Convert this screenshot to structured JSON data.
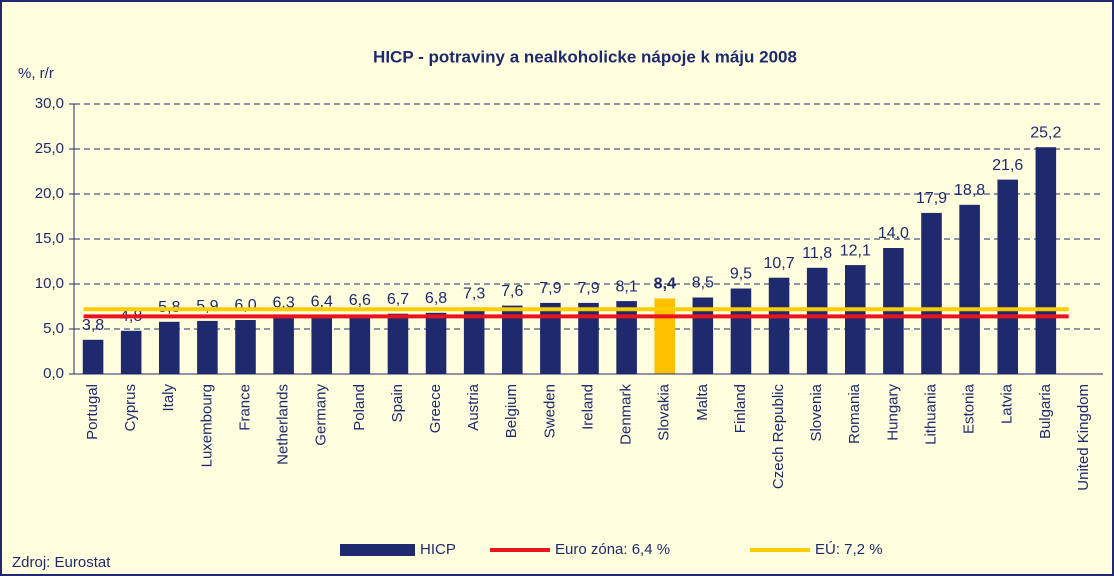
{
  "chart_data": {
    "type": "bar",
    "title": "HICP - potraviny a nealkoholicke nápoje k máju 2008",
    "y_label": "%, r/r",
    "source": "Zdroj: Eurostat",
    "categories": [
      "Portugal",
      "Cyprus",
      "Italy",
      "Luxembourg",
      "France",
      "Netherlands",
      "Germany",
      "Poland",
      "Spain",
      "Greece",
      "Austria",
      "Belgium",
      "Sweden",
      "Ireland",
      "Denmark",
      "Slovakia",
      "Malta",
      "Finland",
      "Czech Republic",
      "Slovenia",
      "Romania",
      "Hungary",
      "Lithuania",
      "Estonia",
      "Latvia",
      "Bulgaria",
      "United Kingdom"
    ],
    "series": [
      {
        "name": "HICP",
        "color": "#1f2a6e",
        "values": [
          3.8,
          4.8,
          5.8,
          5.9,
          6.0,
          6.3,
          6.4,
          6.6,
          6.7,
          6.8,
          7.3,
          7.6,
          7.9,
          7.9,
          8.1,
          8.4,
          8.5,
          9.5,
          10.7,
          11.8,
          12.1,
          14.0,
          17.9,
          18.8,
          21.6,
          25.2,
          null
        ],
        "value_labels": [
          "3,8",
          "4,8",
          "5,8",
          "5,9",
          "6,0",
          "6,3",
          "6,4",
          "6,6",
          "6,7",
          "6,8",
          "7,3",
          "7,6",
          "7,9",
          "7,9",
          "8,1",
          "8,4",
          "8,5",
          "9,5",
          "10,7",
          "11,8",
          "12,1",
          "14,0",
          "17,9",
          "18,8",
          "21,6",
          "25,2",
          null
        ],
        "colors": [
          "#1f2a6e",
          "#1f2a6e",
          "#1f2a6e",
          "#1f2a6e",
          "#1f2a6e",
          "#1f2a6e",
          "#1f2a6e",
          "#1f2a6e",
          "#1f2a6e",
          "#1f2a6e",
          "#1f2a6e",
          "#1f2a6e",
          "#1f2a6e",
          "#1f2a6e",
          "#1f2a6e",
          "#ffc000",
          "#1f2a6e",
          "#1f2a6e",
          "#1f2a6e",
          "#1f2a6e",
          "#1f2a6e",
          "#1f2a6e",
          "#1f2a6e",
          "#1f2a6e",
          "#1f2a6e",
          "#1f2a6e",
          "#1f2a6e"
        ]
      }
    ],
    "reference_lines": [
      {
        "name": "Euro zóna: 6,4 %",
        "value": 6.4,
        "color": "#e8141e"
      },
      {
        "name": "EÚ: 7,2 %",
        "value": 7.2,
        "color": "#ffcc00"
      }
    ],
    "ylim": [
      0,
      30
    ],
    "yticks": [
      {
        "value": 0,
        "label": "0,0"
      },
      {
        "value": 5,
        "label": "5,0"
      },
      {
        "value": 10,
        "label": "10,0"
      },
      {
        "value": 15,
        "label": "15,0"
      },
      {
        "value": 20,
        "label": "20,0"
      },
      {
        "value": 25,
        "label": "25,0"
      },
      {
        "value": 30,
        "label": "30,0"
      }
    ],
    "grid": true
  }
}
